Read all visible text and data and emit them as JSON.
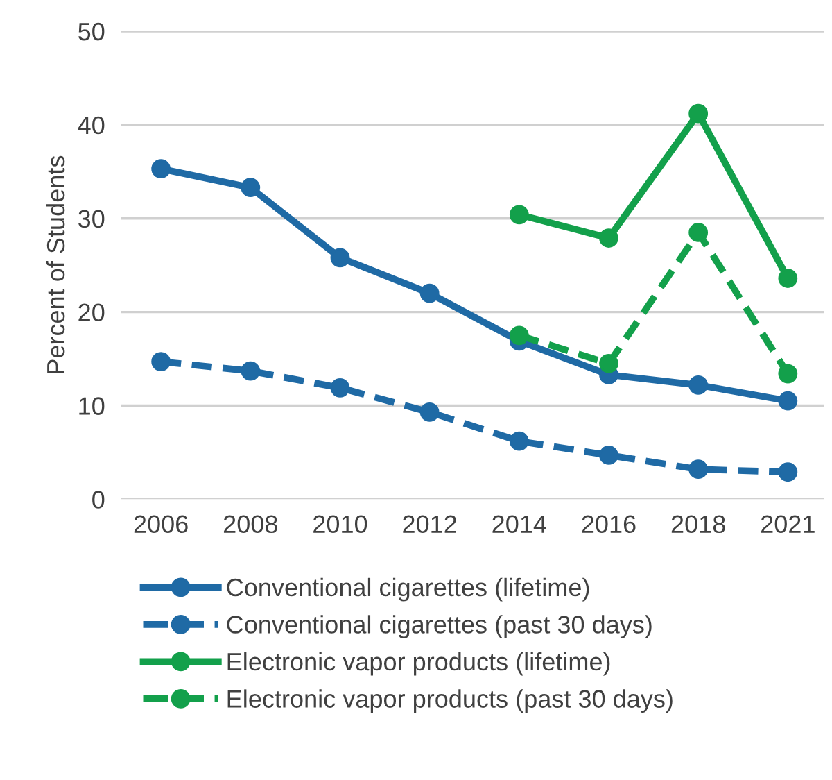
{
  "chart_data": {
    "type": "line",
    "ylabel": "Percent of Students",
    "categories": [
      "2006",
      "2008",
      "2010",
      "2012",
      "2014",
      "2016",
      "2018",
      "2021"
    ],
    "series": [
      {
        "name": "Conventional cigarettes (lifetime)",
        "color": "#1f6aa5",
        "line_style": "solid",
        "values": [
          35.3,
          33.3,
          25.8,
          22.0,
          16.9,
          13.3,
          12.2,
          10.5
        ]
      },
      {
        "name": "Conventional cigarettes (past 30 days)",
        "color": "#1f6aa5",
        "line_style": "dashed",
        "values": [
          14.7,
          13.7,
          11.9,
          9.3,
          6.2,
          4.7,
          3.2,
          2.9
        ]
      },
      {
        "name": "Electronic vapor products (lifetime)",
        "color": "#13a04b",
        "line_style": "solid",
        "values": [
          null,
          null,
          null,
          null,
          30.4,
          27.9,
          41.2,
          23.6
        ]
      },
      {
        "name": "Electronic vapor products (past 30 days)",
        "color": "#13a04b",
        "line_style": "dashed",
        "values": [
          null,
          null,
          null,
          null,
          17.5,
          14.5,
          28.5,
          13.4
        ]
      }
    ],
    "ylim": [
      0,
      50
    ],
    "yticks": [
      0,
      10,
      20,
      30,
      40,
      50
    ],
    "grid": "y",
    "legend": "bottom",
    "marker": "circle"
  }
}
